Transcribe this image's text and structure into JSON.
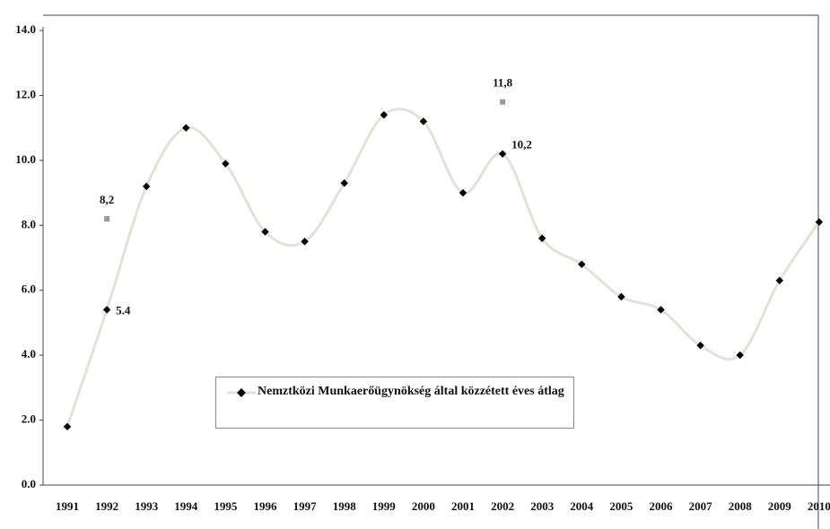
{
  "chart_data": {
    "type": "line",
    "categories": [
      "1991",
      "1992",
      "1993",
      "1994",
      "1995",
      "1996",
      "1997",
      "1998",
      "1999",
      "2000",
      "2001",
      "2002",
      "2003",
      "2004",
      "2005",
      "2006",
      "2007",
      "2008",
      "2009",
      "2010"
    ],
    "series": [
      {
        "name": "Nemztközi Munkaerőügynökség által közzétett éves átlag",
        "color": "#000000",
        "line_color": "#e4e1da",
        "smooth": true,
        "values": [
          1.8,
          5.4,
          9.2,
          11.0,
          9.9,
          7.8,
          7.5,
          9.3,
          11.4,
          11.2,
          9.0,
          10.2,
          7.6,
          6.8,
          5.8,
          5.4,
          4.3,
          4.0,
          6.3,
          8.1
        ],
        "value_labels": [
          null,
          "5.4",
          null,
          null,
          null,
          null,
          null,
          null,
          null,
          null,
          null,
          "10,2",
          null,
          null,
          null,
          null,
          null,
          null,
          null,
          null
        ]
      },
      {
        "color": "#9a9a9a",
        "marker": "square",
        "values": [
          null,
          8.2,
          null,
          null,
          null,
          null,
          null,
          null,
          null,
          null,
          null,
          11.8,
          null,
          null,
          null,
          null,
          null,
          null,
          null,
          null
        ],
        "value_labels": [
          null,
          "8,2",
          null,
          null,
          null,
          null,
          null,
          null,
          null,
          null,
          null,
          "11,8",
          null,
          null,
          null,
          null,
          null,
          null,
          null,
          null
        ]
      }
    ],
    "ylim": [
      0,
      14
    ],
    "yticks": [
      {
        "value": 0,
        "label": "0.0"
      },
      {
        "value": 2,
        "label": "2.0"
      },
      {
        "value": 4,
        "label": "4.0"
      },
      {
        "value": 6,
        "label": "6.0"
      },
      {
        "value": 8,
        "label": "8.0"
      },
      {
        "value": 10,
        "label": "10.0"
      },
      {
        "value": 12,
        "label": "12.0"
      },
      {
        "value": 14,
        "label": "14.0"
      }
    ]
  }
}
